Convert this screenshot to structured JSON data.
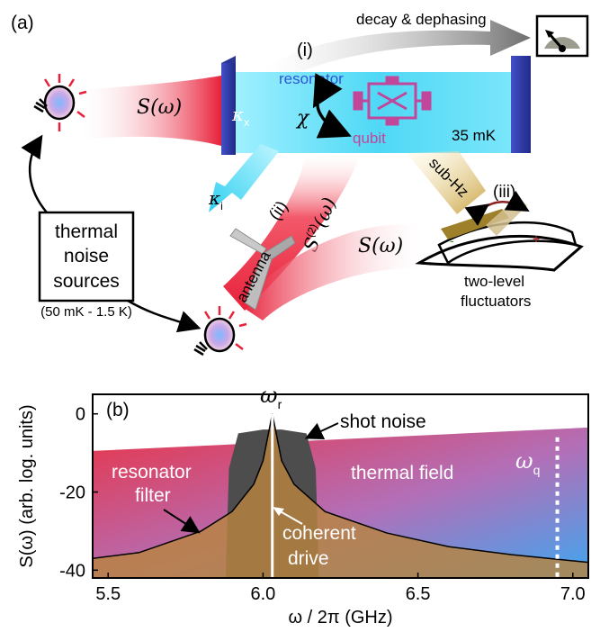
{
  "panel_a": {
    "label": "(a)",
    "decay_label": "decay & dephasing",
    "roman_i": "(i)",
    "roman_ii": "(ii)",
    "roman_iii": "(iii)",
    "resonator_label": "resonator",
    "qubit_label": "qubit",
    "chi_label": "χ",
    "temp_label": "35 mK",
    "kappa_x_label": "κ",
    "kappa_x_sub": "x",
    "kappa_i_label": "κ",
    "kappa_i_sub": "i",
    "s_omega_label": "S(ω)",
    "s2_label_pre": "S",
    "s2_label_sup": "(2)",
    "s2_label_post": "(ω)",
    "antenna_label": "antenna",
    "subhz_label": "sub-Hz",
    "tls_label_line1": "two-level",
    "tls_label_line2": "fluctuators",
    "thermal_box_line1": "thermal",
    "thermal_box_line2": "noise",
    "thermal_box_line3": "sources",
    "temp_range": "(50 mK - 1.5 K)",
    "colors": {
      "resonator_cyan": "#4fd8f5",
      "mirror_blue": "#2f3aa8",
      "qubit_magenta": "#c0479a",
      "thermal_red": "#e8213a",
      "tls_gold": "#c9a43a"
    }
  },
  "panel_b": {
    "label": "(b)",
    "annotations": {
      "omega_r": "ω",
      "omega_r_sub": "r",
      "shot_noise": "shot noise",
      "resonator_filter_line1": "resonator",
      "resonator_filter_line2": "filter",
      "thermal_field": "thermal field",
      "omega_q": "ω",
      "omega_q_sub": "q",
      "coherent_line1": "coherent",
      "coherent_line2": "drive"
    },
    "chart_data": {
      "type": "area",
      "xlabel": "ω / 2π (GHz)",
      "ylabel": "S(ω) (arb. log. units)",
      "xlim": [
        5.45,
        7.05
      ],
      "ylim": [
        -42,
        5
      ],
      "xticks": [
        5.5,
        6.0,
        6.5,
        7.0
      ],
      "xtick_labels": [
        "5.5",
        "6.0",
        "6.5",
        "7.0"
      ],
      "yticks": [
        0,
        -20,
        -40
      ],
      "ytick_labels": [
        "0",
        "-20",
        "-40"
      ],
      "resonator_frequency": 6.03,
      "qubit_frequency": 6.95,
      "series": [
        {
          "name": "thermal field",
          "x": [
            5.45,
            7.05
          ],
          "values": [
            -9.5,
            -3.5
          ]
        },
        {
          "name": "shot noise",
          "x": [
            5.88,
            5.89,
            5.92,
            6.0,
            6.06,
            6.14,
            6.17,
            6.18
          ],
          "values": [
            -40,
            -14,
            -5,
            -4,
            -4,
            -5,
            -14,
            -40
          ]
        },
        {
          "name": "resonator filter",
          "x": [
            5.45,
            5.6,
            5.8,
            5.9,
            5.97,
            6.0,
            6.03,
            6.06,
            6.1,
            6.2,
            6.4,
            6.6,
            6.8,
            7.05
          ],
          "values": [
            -37,
            -35.5,
            -30,
            -25,
            -18,
            -12,
            0,
            -12,
            -18,
            -25,
            -30.5,
            -34,
            -36,
            -38
          ]
        },
        {
          "name": "coherent drive",
          "x": [
            6.03
          ],
          "values": [
            0
          ]
        }
      ]
    }
  }
}
